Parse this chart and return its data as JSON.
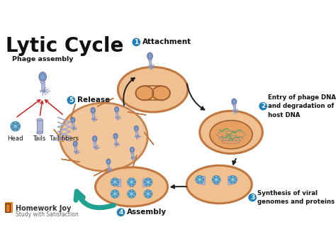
{
  "title": "Lytic Cycle",
  "background_color": "#ffffff",
  "title_fontsize": 20,
  "cell_color": "#f0c090",
  "cell_edge_color": "#c07840",
  "cell_lw": 2.0,
  "nucleus_color": "#e8a060",
  "nucleus_edge": "#a06030",
  "phage_head_color": "#9098c8",
  "phage_body_color": "#b0b8d8",
  "phage_blue_spot": "#70b0d8",
  "teal_arrow_color": "#20a090",
  "step_circle_color": "#2080b8",
  "black_arrow_color": "#222222",
  "red_arrow_color": "#cc2222",
  "labels": {
    "phage_assembly": "Phage assembly",
    "head": "Head",
    "tails": "Tails",
    "tail_fibers": "Tail fibers",
    "step1": "Attachment",
    "step2": "Entry of phage DNA\nand degradation of\nhost DNA",
    "step3": "Synthesis of viral\ngenomes and proteins",
    "step4": "Assembly",
    "step5": "Release"
  },
  "watermark_line1": "Homework Joy",
  "watermark_line2": "Study with Satisfaction"
}
